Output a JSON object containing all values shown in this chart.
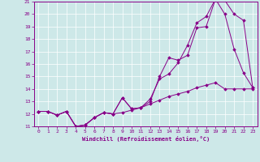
{
  "xlabel": "Windchill (Refroidissement éolien,°C)",
  "background_color": "#cde8e8",
  "grid_color": "#ffffff",
  "line_color": "#880088",
  "xlim": [
    -0.5,
    23.5
  ],
  "ylim": [
    11,
    21
  ],
  "xticks": [
    0,
    1,
    2,
    3,
    4,
    5,
    6,
    7,
    8,
    9,
    10,
    11,
    12,
    13,
    14,
    15,
    16,
    17,
    18,
    19,
    20,
    21,
    22,
    23
  ],
  "yticks": [
    11,
    12,
    13,
    14,
    15,
    16,
    17,
    18,
    19,
    20,
    21
  ],
  "line1_x": [
    0,
    1,
    2,
    3,
    4,
    5,
    6,
    7,
    8,
    9,
    10,
    11,
    12,
    13,
    14,
    15,
    16,
    17,
    18,
    19,
    20,
    21,
    22,
    23
  ],
  "line1_y": [
    12.2,
    12.2,
    11.9,
    12.2,
    11.0,
    11.1,
    11.7,
    12.1,
    12.0,
    13.3,
    12.4,
    12.5,
    13.0,
    15.0,
    16.5,
    16.3,
    16.7,
    18.9,
    19.0,
    21.2,
    21.1,
    20.0,
    19.5,
    14.1
  ],
  "line2_x": [
    0,
    1,
    2,
    3,
    4,
    5,
    6,
    7,
    8,
    9,
    10,
    11,
    12,
    13,
    14,
    15,
    16,
    17,
    18,
    19,
    20,
    21,
    22,
    23
  ],
  "line2_y": [
    12.2,
    12.2,
    11.9,
    12.2,
    11.0,
    11.1,
    11.7,
    12.1,
    12.0,
    13.3,
    12.4,
    12.5,
    13.2,
    14.8,
    15.2,
    16.1,
    17.5,
    19.3,
    19.8,
    21.2,
    20.0,
    17.2,
    15.3,
    14.1
  ],
  "line3_x": [
    0,
    1,
    2,
    3,
    4,
    5,
    6,
    7,
    8,
    9,
    10,
    11,
    12,
    13,
    14,
    15,
    16,
    17,
    18,
    19,
    20,
    21,
    22,
    23
  ],
  "line3_y": [
    12.2,
    12.2,
    11.9,
    12.2,
    11.0,
    11.1,
    11.7,
    12.1,
    12.0,
    12.1,
    12.3,
    12.5,
    12.8,
    13.1,
    13.4,
    13.6,
    13.8,
    14.1,
    14.3,
    14.5,
    14.0,
    14.0,
    14.0,
    14.0
  ]
}
